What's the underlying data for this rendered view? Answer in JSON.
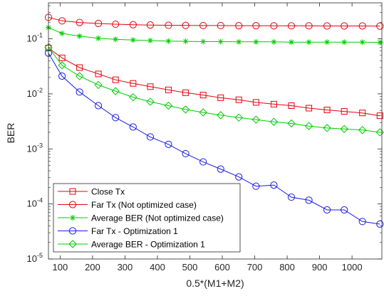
{
  "chart_data": {
    "type": "line",
    "xlabel": "0.5*(M1+M2)",
    "ylabel": "BER",
    "y_scale": "log",
    "xlim": [
      64,
      1092
    ],
    "ylim": [
      1e-05,
      0.45
    ],
    "xticks": [
      100,
      200,
      300,
      400,
      500,
      600,
      700,
      800,
      900,
      1000
    ],
    "yticks": [
      {
        "value": 1e-05,
        "base": "10",
        "exp": "-5"
      },
      {
        "value": 0.0001,
        "base": "10",
        "exp": "-4"
      },
      {
        "value": 0.001,
        "base": "10",
        "exp": "-3"
      },
      {
        "value": 0.01,
        "base": "10",
        "exp": "-2"
      },
      {
        "value": 0.1,
        "base": "10",
        "exp": "-1"
      }
    ],
    "grid": false,
    "legend_position": "bottom-left",
    "series": [
      {
        "name": "Close Tx",
        "color": "#e8000b",
        "marker": "square",
        "x": [
          64,
          106,
          160,
          218,
          271,
          325,
          378,
          434,
          487,
          541,
          595,
          651,
          704,
          759,
          813,
          867,
          923,
          976,
          1032,
          1086
        ],
        "y": [
          0.068,
          0.045,
          0.03,
          0.023,
          0.018,
          0.0155,
          0.0135,
          0.0118,
          0.0105,
          0.0095,
          0.0085,
          0.0078,
          0.007,
          0.0065,
          0.0061,
          0.0055,
          0.0051,
          0.0048,
          0.0045,
          0.004
        ]
      },
      {
        "name": "Far Tx (Not optimized case)",
        "color": "#e8000b",
        "marker": "circle",
        "x": [
          64,
          106,
          160,
          218,
          271,
          325,
          378,
          434,
          487,
          541,
          595,
          651,
          704,
          759,
          813,
          867,
          923,
          976,
          1032,
          1086
        ],
        "y": [
          0.245,
          0.212,
          0.198,
          0.19,
          0.184,
          0.18,
          0.178,
          0.176,
          0.175,
          0.174,
          0.174,
          0.173,
          0.173,
          0.172,
          0.172,
          0.172,
          0.171,
          0.171,
          0.171,
          0.17
        ]
      },
      {
        "name": "Average BER (Not optimized case)",
        "color": "#00cc00",
        "marker": "star",
        "x": [
          64,
          106,
          160,
          218,
          271,
          325,
          378,
          434,
          487,
          541,
          595,
          651,
          704,
          759,
          813,
          867,
          923,
          976,
          1032,
          1086
        ],
        "y": [
          0.16,
          0.125,
          0.112,
          0.102,
          0.098,
          0.095,
          0.093,
          0.091,
          0.09,
          0.089,
          0.089,
          0.088,
          0.088,
          0.088,
          0.087,
          0.087,
          0.087,
          0.087,
          0.087,
          0.086
        ]
      },
      {
        "name": "Far Tx - Optimization 1",
        "color": "#1a1ae6",
        "marker": "circle",
        "x": [
          64,
          106,
          160,
          218,
          271,
          325,
          378,
          434,
          487,
          541,
          595,
          651,
          704,
          759,
          813,
          867,
          923,
          976,
          1032,
          1086
        ],
        "y": [
          0.055,
          0.021,
          0.0108,
          0.0061,
          0.0037,
          0.0025,
          0.00165,
          0.00121,
          0.00082,
          0.00058,
          0.00043,
          0.00031,
          0.00021,
          0.00022,
          0.000133,
          0.000117,
          7.8e-05,
          7.8e-05,
          4.8e-05,
          4.3e-05
        ]
      },
      {
        "name": "Average BER - Optimization 1",
        "color": "#00cc00",
        "marker": "diamond",
        "x": [
          64,
          106,
          160,
          218,
          271,
          325,
          378,
          434,
          487,
          541,
          595,
          651,
          704,
          759,
          813,
          867,
          923,
          976,
          1032,
          1086
        ],
        "y": [
          0.07,
          0.033,
          0.021,
          0.0145,
          0.0112,
          0.0087,
          0.0072,
          0.0061,
          0.0052,
          0.0046,
          0.0041,
          0.0037,
          0.0034,
          0.0031,
          0.0029,
          0.0026,
          0.0024,
          0.0023,
          0.0022,
          0.002
        ]
      }
    ]
  }
}
